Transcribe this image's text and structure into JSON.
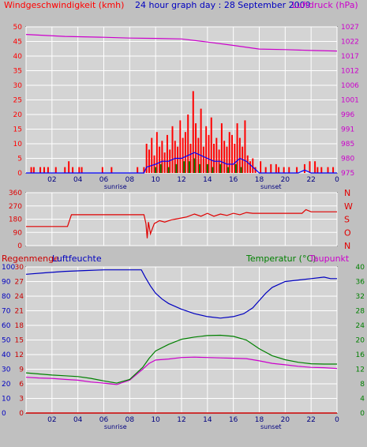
{
  "colors": {
    "background": "#c0c0c0",
    "plot_bg": "#d4d4d4",
    "grid": "#ffffff",
    "wind": "#ff0000",
    "gust_avg": "#0000ff",
    "wind_min": "#008000",
    "pressure": "#cc00cc",
    "direction": "#e00000",
    "humidity": "#0000c0",
    "temperature": "#008000",
    "dewpoint": "#cc00cc",
    "rain": "#cc0000"
  },
  "header": {
    "wind_label": "Windgeschwindigkeit (kmh)",
    "title": "24 hour graph day : 28 September 2009",
    "pressure_label": "Luftdruck (hPa)"
  },
  "temp_header": {
    "rain_label": "Regenmenge",
    "humidity_label": "Luftfeuchte",
    "temp_label": "Temperatur (°C)",
    "dew_label": "Taupunkt"
  },
  "x_axis": {
    "tick_labels": [
      "02",
      "04",
      "06",
      "08",
      "10",
      "12",
      "14",
      "16",
      "18",
      "20",
      "22",
      "0"
    ],
    "sunrise_label": "sunrise",
    "sunset_label": "sunset",
    "sunrise_hour": 6.9,
    "sunset_hour": 18.9
  },
  "chart_data": [
    {
      "type": "bar",
      "title": "24 hour graph day : 28 September 2009",
      "ylabel": "Windgeschwindigkeit (kmh)",
      "y2label": "Luftdruck (hPa)",
      "ylim": [
        0,
        50
      ],
      "y_ticks": [
        0,
        5,
        10,
        15,
        20,
        25,
        30,
        35,
        40,
        45,
        50
      ],
      "y2_ticks": [
        975,
        980,
        985,
        991,
        996,
        1001,
        1006,
        1012,
        1017,
        1022,
        1027
      ],
      "xlim": [
        0,
        24
      ],
      "grid": true,
      "wind_bars": [
        [
          0.4,
          2
        ],
        [
          0.6,
          2
        ],
        [
          1.1,
          2
        ],
        [
          1.4,
          2
        ],
        [
          1.7,
          2
        ],
        [
          2.3,
          2
        ],
        [
          3.0,
          2
        ],
        [
          3.3,
          4
        ],
        [
          3.6,
          2
        ],
        [
          4.1,
          2
        ],
        [
          4.3,
          2
        ],
        [
          5.9,
          2
        ],
        [
          6.6,
          2
        ],
        [
          8.6,
          2
        ],
        [
          9.1,
          2
        ],
        [
          9.3,
          10
        ],
        [
          9.5,
          8
        ],
        [
          9.7,
          12
        ],
        [
          9.9,
          6
        ],
        [
          10.1,
          14
        ],
        [
          10.3,
          9
        ],
        [
          10.5,
          11
        ],
        [
          10.7,
          7
        ],
        [
          10.9,
          13
        ],
        [
          11.1,
          8
        ],
        [
          11.3,
          16
        ],
        [
          11.5,
          11
        ],
        [
          11.7,
          9
        ],
        [
          11.9,
          18
        ],
        [
          12.1,
          12
        ],
        [
          12.3,
          14
        ],
        [
          12.5,
          20
        ],
        [
          12.7,
          10
        ],
        [
          12.9,
          28
        ],
        [
          13.1,
          17
        ],
        [
          13.3,
          12
        ],
        [
          13.5,
          22
        ],
        [
          13.7,
          9
        ],
        [
          13.9,
          16
        ],
        [
          14.1,
          13
        ],
        [
          14.3,
          19
        ],
        [
          14.5,
          10
        ],
        [
          14.7,
          12
        ],
        [
          14.9,
          8
        ],
        [
          15.1,
          17
        ],
        [
          15.3,
          11
        ],
        [
          15.5,
          9
        ],
        [
          15.7,
          14
        ],
        [
          15.9,
          13
        ],
        [
          16.1,
          10
        ],
        [
          16.3,
          17
        ],
        [
          16.5,
          12
        ],
        [
          16.7,
          9
        ],
        [
          16.9,
          18
        ],
        [
          17.1,
          6
        ],
        [
          17.3,
          4
        ],
        [
          17.5,
          5
        ],
        [
          17.7,
          2
        ],
        [
          18.1,
          4
        ],
        [
          18.5,
          2
        ],
        [
          18.9,
          3
        ],
        [
          19.3,
          3
        ],
        [
          19.5,
          2
        ],
        [
          19.9,
          2
        ],
        [
          20.3,
          2
        ],
        [
          20.9,
          2
        ],
        [
          21.5,
          3
        ],
        [
          21.9,
          4
        ],
        [
          22.3,
          4
        ],
        [
          22.5,
          2
        ],
        [
          22.8,
          2
        ],
        [
          23.3,
          2
        ],
        [
          23.7,
          2
        ]
      ],
      "avg_line": [
        [
          0,
          0
        ],
        [
          9.1,
          0
        ],
        [
          9.3,
          2
        ],
        [
          10,
          3
        ],
        [
          10.5,
          4
        ],
        [
          11,
          4
        ],
        [
          11.5,
          5
        ],
        [
          12,
          5
        ],
        [
          12.5,
          6
        ],
        [
          13,
          7
        ],
        [
          13.5,
          6
        ],
        [
          14,
          5
        ],
        [
          14.5,
          4
        ],
        [
          15,
          4
        ],
        [
          15.5,
          3
        ],
        [
          16,
          3
        ],
        [
          16.5,
          5
        ],
        [
          17,
          4
        ],
        [
          17.5,
          2
        ],
        [
          18,
          0
        ],
        [
          21,
          0
        ],
        [
          21.5,
          1
        ],
        [
          22,
          0
        ],
        [
          24,
          0
        ]
      ],
      "min_bars": [
        [
          10.0,
          2
        ],
        [
          10.4,
          3
        ],
        [
          11.0,
          2
        ],
        [
          11.6,
          3
        ],
        [
          12.2,
          4
        ],
        [
          12.6,
          4
        ],
        [
          13.0,
          5
        ],
        [
          13.4,
          3
        ],
        [
          14.0,
          3
        ],
        [
          14.4,
          2
        ],
        [
          15.0,
          3
        ],
        [
          15.6,
          2
        ],
        [
          16.2,
          3
        ],
        [
          16.6,
          2
        ]
      ],
      "pressure_line": [
        [
          0,
          1024.3
        ],
        [
          3,
          1023.6
        ],
        [
          6,
          1023.3
        ],
        [
          8,
          1023.0
        ],
        [
          10,
          1022.9
        ],
        [
          12,
          1022.7
        ],
        [
          14,
          1021.6
        ],
        [
          16,
          1020.4
        ],
        [
          18,
          1019.1
        ],
        [
          20,
          1018.9
        ],
        [
          22,
          1018.6
        ],
        [
          24,
          1018.4
        ]
      ]
    },
    {
      "type": "line",
      "ylim": [
        0,
        360
      ],
      "y_ticks": [
        0,
        90,
        180,
        270,
        360
      ],
      "direction_labels": [
        "N",
        "W",
        "S",
        "O",
        "N"
      ],
      "xlim": [
        0,
        24
      ],
      "direction_line": [
        [
          0,
          130
        ],
        [
          3.2,
          130
        ],
        [
          3.5,
          210
        ],
        [
          9.1,
          210
        ],
        [
          9.25,
          150
        ],
        [
          9.35,
          50
        ],
        [
          9.45,
          160
        ],
        [
          9.6,
          80
        ],
        [
          9.9,
          150
        ],
        [
          10.3,
          170
        ],
        [
          10.7,
          160
        ],
        [
          11.2,
          175
        ],
        [
          11.8,
          185
        ],
        [
          12.4,
          195
        ],
        [
          13.0,
          215
        ],
        [
          13.5,
          200
        ],
        [
          14.0,
          220
        ],
        [
          14.5,
          200
        ],
        [
          15.0,
          215
        ],
        [
          15.5,
          205
        ],
        [
          16.0,
          220
        ],
        [
          16.5,
          210
        ],
        [
          17.0,
          225
        ],
        [
          17.5,
          220
        ],
        [
          21.3,
          220
        ],
        [
          21.6,
          245
        ],
        [
          22.0,
          230
        ],
        [
          24,
          230
        ]
      ]
    },
    {
      "type": "line",
      "ylim": [
        0,
        30
      ],
      "y_ticks_rain": [
        0,
        3,
        6,
        9,
        12,
        15,
        18,
        21,
        24,
        27,
        30
      ],
      "y_ticks_humidity": [
        0,
        10,
        20,
        30,
        40,
        50,
        60,
        70,
        80,
        90,
        100
      ],
      "y_ticks_temp": [
        0,
        4,
        8,
        12,
        16,
        20,
        24,
        28,
        32,
        36,
        40
      ],
      "xlim": [
        0,
        24
      ],
      "humidity_line": [
        [
          0,
          95
        ],
        [
          1.5,
          96
        ],
        [
          3,
          97
        ],
        [
          4.5,
          97.5
        ],
        [
          6,
          98
        ],
        [
          7.5,
          98
        ],
        [
          8.9,
          98
        ],
        [
          9.2,
          93
        ],
        [
          9.6,
          87
        ],
        [
          10,
          82
        ],
        [
          10.5,
          78
        ],
        [
          11,
          75
        ],
        [
          12,
          71
        ],
        [
          13,
          68
        ],
        [
          14,
          66
        ],
        [
          15,
          65
        ],
        [
          16,
          66
        ],
        [
          16.8,
          68
        ],
        [
          17.5,
          72
        ],
        [
          18,
          77
        ],
        [
          18.5,
          82
        ],
        [
          19,
          86
        ],
        [
          20,
          90
        ],
        [
          21,
          91
        ],
        [
          22,
          92
        ],
        [
          23,
          93
        ],
        [
          23.5,
          92
        ],
        [
          24,
          92
        ]
      ],
      "temperature_line": [
        [
          0,
          11.0
        ],
        [
          1,
          10.7
        ],
        [
          2,
          10.4
        ],
        [
          3,
          10.2
        ],
        [
          4,
          10.0
        ],
        [
          5,
          9.5
        ],
        [
          6,
          8.8
        ],
        [
          7,
          8.2
        ],
        [
          8,
          9.2
        ],
        [
          9,
          12.5
        ],
        [
          9.5,
          15.0
        ],
        [
          10,
          17.0
        ],
        [
          11,
          18.8
        ],
        [
          12,
          20.2
        ],
        [
          13,
          20.8
        ],
        [
          14,
          21.2
        ],
        [
          15,
          21.3
        ],
        [
          16,
          21.0
        ],
        [
          17,
          20.0
        ],
        [
          18,
          17.6
        ],
        [
          19,
          15.7
        ],
        [
          20,
          14.6
        ],
        [
          21,
          13.9
        ],
        [
          22,
          13.5
        ],
        [
          23,
          13.4
        ],
        [
          24,
          13.4
        ]
      ],
      "dewpoint_line": [
        [
          0,
          9.8
        ],
        [
          1,
          9.6
        ],
        [
          2,
          9.5
        ],
        [
          3,
          9.2
        ],
        [
          4,
          9.0
        ],
        [
          5,
          8.5
        ],
        [
          6,
          8.2
        ],
        [
          7,
          7.8
        ],
        [
          8,
          9.0
        ],
        [
          9,
          12.0
        ],
        [
          9.5,
          13.6
        ],
        [
          10,
          14.5
        ],
        [
          11,
          14.8
        ],
        [
          12,
          15.2
        ],
        [
          13,
          15.3
        ],
        [
          14,
          15.2
        ],
        [
          15,
          15.1
        ],
        [
          16,
          15.0
        ],
        [
          17,
          14.9
        ],
        [
          18,
          14.3
        ],
        [
          19,
          13.6
        ],
        [
          20,
          13.2
        ],
        [
          21,
          12.8
        ],
        [
          22,
          12.5
        ],
        [
          23,
          12.4
        ],
        [
          24,
          12.2
        ]
      ],
      "rain_line": [
        [
          0,
          0
        ],
        [
          24,
          0
        ]
      ]
    }
  ]
}
